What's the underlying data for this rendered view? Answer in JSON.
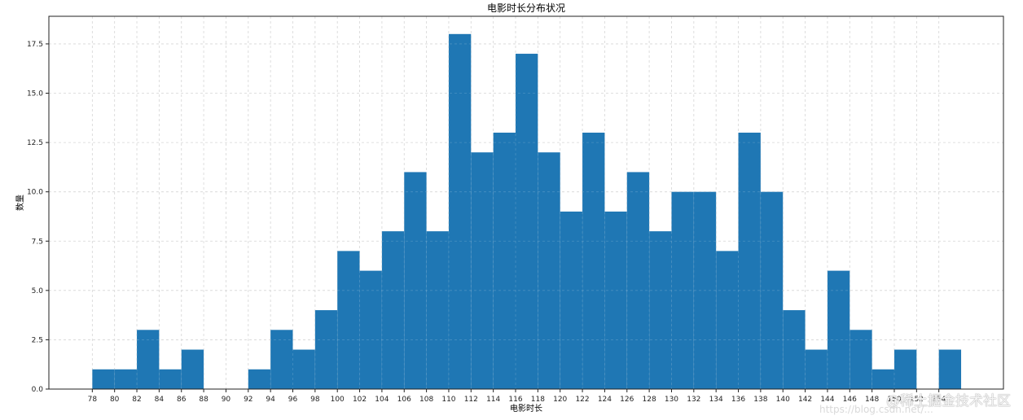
{
  "chart_data": {
    "type": "bar",
    "subtype": "histogram",
    "title": "电影时长分布状况",
    "xlabel": "电影时长",
    "ylabel": "数量",
    "bin_width": 2,
    "bin_edges_start": 78,
    "categories": [
      "78",
      "80",
      "82",
      "84",
      "86",
      "88",
      "90",
      "92",
      "94",
      "96",
      "98",
      "100",
      "102",
      "104",
      "106",
      "108",
      "110",
      "112",
      "114",
      "116",
      "118",
      "120",
      "122",
      "124",
      "126",
      "128",
      "130",
      "132",
      "134",
      "136",
      "138",
      "140",
      "142",
      "144",
      "146",
      "148",
      "150",
      "152",
      "154"
    ],
    "values": [
      1,
      1,
      3,
      1,
      2,
      0,
      0,
      1,
      3,
      2,
      4,
      7,
      6,
      8,
      11,
      8,
      18,
      12,
      13,
      17,
      12,
      9,
      13,
      9,
      11,
      8,
      10,
      10,
      7,
      13,
      10,
      4,
      2,
      6,
      3,
      1,
      2,
      0,
      2
    ],
    "xticks": [
      "78",
      "80",
      "82",
      "84",
      "86",
      "88",
      "90",
      "92",
      "94",
      "96",
      "98",
      "100",
      "102",
      "104",
      "106",
      "108",
      "110",
      "112",
      "114",
      "116",
      "118",
      "120",
      "122",
      "124",
      "126",
      "128",
      "130",
      "132",
      "134",
      "136",
      "138",
      "140",
      "142",
      "144",
      "146",
      "148",
      "150",
      "152",
      "154"
    ],
    "yticks": [
      "0.0",
      "2.5",
      "5.0",
      "7.5",
      "10.0",
      "12.5",
      "15.0",
      "17.5"
    ],
    "xlim": [
      74.1,
      159.8
    ],
    "ylim": [
      0,
      18.9
    ],
    "grid": true,
    "bar_color": "#1f77b4",
    "legend": null
  },
  "watermark": {
    "line1": "@稀土掘金技术社区",
    "line2": "https://blog.csdn.net/..."
  }
}
